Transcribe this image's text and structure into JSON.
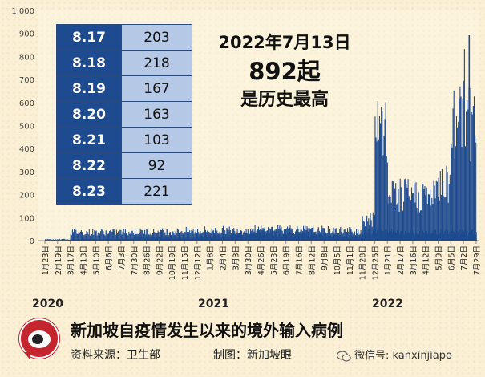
{
  "chart_data": {
    "type": "bar",
    "title": "新加坡自疫情发生以来的境外输入病例",
    "ylim": [
      0,
      1000
    ],
    "y_ticks": [
      0,
      100,
      200,
      300,
      400,
      500,
      600,
      700,
      800,
      900,
      "1,000"
    ],
    "x_ticks": [
      "1月23日",
      "2月19日",
      "3月17日",
      "4月13日",
      "5月10日",
      "6月6日",
      "7月3日",
      "7月30日",
      "8月26日",
      "9月22日",
      "10月19日",
      "11月15日",
      "12月12日",
      "1月8日",
      "2月4日",
      "3月3日",
      "3月30日",
      "4月26日",
      "5月23日",
      "6月19日",
      "7月16日",
      "8月12日",
      "9月8日",
      "10月5日",
      "11月1日",
      "11月28日",
      "12月25日",
      "1月21日",
      "2月17日",
      "3月16日",
      "4月12日",
      "5月9日",
      "6月5日",
      "7月2日",
      "7月29日"
    ],
    "years": [
      "2020",
      "2021",
      "2022"
    ],
    "bar_color": "#1e4a8f",
    "series_shape": [
      {
        "from": "1月23日",
        "to": "3月10日",
        "level": 6
      },
      {
        "from": "3月17日",
        "to": "4月10日",
        "level": 40,
        "peak": 55
      },
      {
        "from": "4月13日",
        "to": "7月30日",
        "level": 6
      },
      {
        "from": "7月30日",
        "to": "12月12日",
        "level": 14
      },
      {
        "from": "12月12日",
        "to": "11月28日",
        "level": 20,
        "peak": 55
      },
      {
        "from": "11月28日",
        "to": "12月25日",
        "level": 100
      },
      {
        "from": "12月25日",
        "to": "1月21日",
        "level": 460,
        "peak": 580
      },
      {
        "from": "1月21日",
        "to": "5月9日",
        "level": 210
      },
      {
        "from": "5月9日",
        "to": "6月5日",
        "level": 280
      },
      {
        "from": "6月5日",
        "to": "7月29日",
        "level": 500,
        "peak": 892
      },
      {
        "from": "7月29日",
        "to": "8月23日",
        "level": 260
      }
    ],
    "table": {
      "dates": [
        "8.17",
        "8.18",
        "8.19",
        "8.20",
        "8.21",
        "8.22",
        "8.23"
      ],
      "values": [
        203,
        218,
        167,
        163,
        103,
        92,
        221
      ]
    },
    "annotation": {
      "date": "2022年7月13日",
      "count": "892起",
      "note": "是历史最高"
    }
  },
  "footer": {
    "source": "资料来源：卫生部",
    "maker": "制图：新加坡眼",
    "wechat": "微信号: kanxinjiapo"
  }
}
